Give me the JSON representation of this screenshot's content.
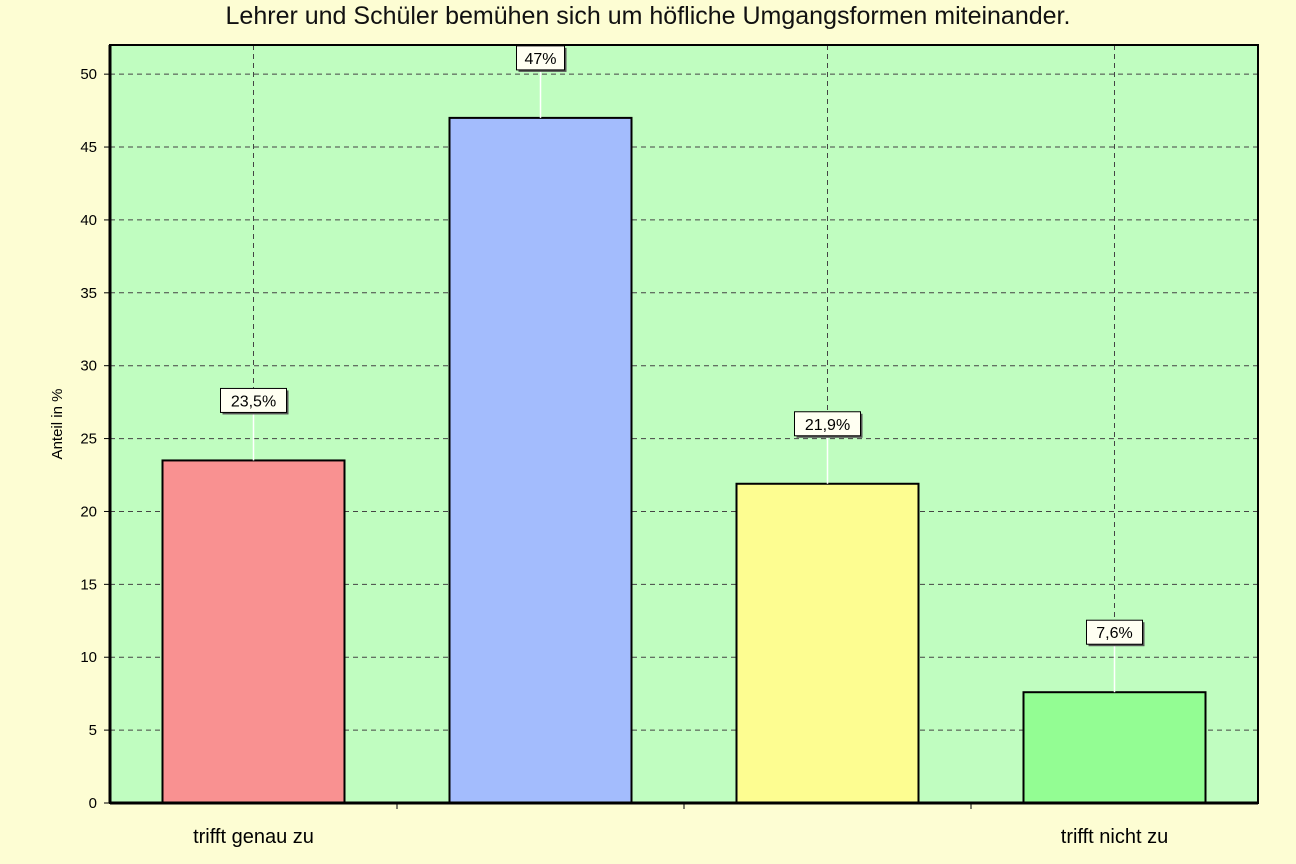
{
  "chart_data": {
    "type": "bar",
    "title": "Lehrer und Schüler bemühen sich um höfliche Umgangsformen miteinander.",
    "ylabel": "Anteil in %",
    "xlabel": "",
    "ylim": [
      0,
      52
    ],
    "yticks": [
      0,
      5,
      10,
      15,
      20,
      25,
      30,
      35,
      40,
      45,
      50
    ],
    "categories": [
      "trifft genau zu",
      "",
      "",
      "trifft nicht zu"
    ],
    "values": [
      23.5,
      47,
      21.9,
      7.6
    ],
    "data_labels": [
      "23,5%",
      "47%",
      "21,9%",
      "7,6%"
    ],
    "bar_colors": [
      "#f99191",
      "#a3bcfd",
      "#fdfd91",
      "#93fd93"
    ],
    "plot_background": "#c0fdc0",
    "page_background": "#fdfdd3",
    "grid": true,
    "legend": "none"
  }
}
